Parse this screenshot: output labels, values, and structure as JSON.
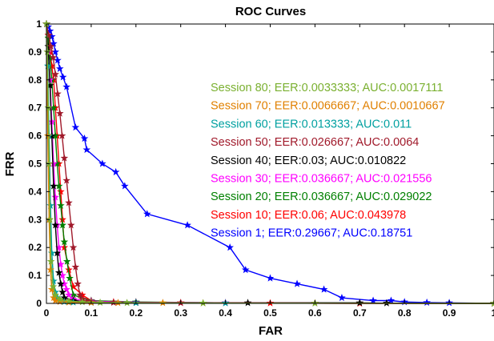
{
  "chart_data": {
    "type": "line",
    "title": "ROC Curves",
    "xlabel": "FAR",
    "ylabel": "FRR",
    "xlim": [
      0,
      1
    ],
    "ylim": [
      0,
      1
    ],
    "xticks": [
      0,
      0.1,
      0.2,
      0.3,
      0.4,
      0.5,
      0.6,
      0.7,
      0.8,
      0.9,
      1
    ],
    "yticks": [
      0,
      0.1,
      0.2,
      0.3,
      0.4,
      0.5,
      0.6,
      0.7,
      0.8,
      0.9,
      1
    ],
    "xtick_labels": [
      "0",
      "0.1",
      "0.2",
      "0.3",
      "0.4",
      "0.5",
      "0.6",
      "0.7",
      "0.8",
      "0.9",
      "1"
    ],
    "ytick_labels": [
      "0",
      "0.1",
      "0.2",
      "0.3",
      "0.4",
      "0.5",
      "0.6",
      "0.7",
      "0.8",
      "0.9",
      "1"
    ],
    "grid": false,
    "legend_position": "right",
    "marker": "star",
    "series": [
      {
        "name": "Session 1",
        "color": "#0000ff",
        "legend": "Session 1;  EER:0.29667;  AUC:0.18751",
        "x": [
          0,
          0.004,
          0.008,
          0.012,
          0.016,
          0.02,
          0.025,
          0.03,
          0.037,
          0.045,
          0.065,
          0.085,
          0.09,
          0.125,
          0.155,
          0.175,
          0.225,
          0.315,
          0.41,
          0.445,
          0.5,
          0.56,
          0.62,
          0.66,
          0.73,
          0.77,
          0.8,
          0.85,
          0.9,
          1
        ],
        "y": [
          1,
          0.99,
          0.975,
          0.955,
          0.93,
          0.9,
          0.87,
          0.84,
          0.81,
          0.775,
          0.63,
          0.59,
          0.55,
          0.5,
          0.47,
          0.42,
          0.32,
          0.28,
          0.2,
          0.12,
          0.09,
          0.07,
          0.05,
          0.02,
          0.01,
          0.01,
          0.005,
          0.003,
          0.002,
          0
        ]
      },
      {
        "name": "Session 10",
        "color": "#ff0000",
        "legend": "Session 10;  EER:0.06;  AUC:0.043978",
        "x": [
          0,
          0.004,
          0.008,
          0.012,
          0.016,
          0.02,
          0.024,
          0.028,
          0.032,
          0.036,
          0.04,
          0.05,
          0.06,
          0.08,
          0.1,
          0.15,
          0.2,
          0.3,
          0.5,
          0.7,
          1
        ],
        "y": [
          1,
          0.96,
          0.9,
          0.85,
          0.8,
          0.7,
          0.6,
          0.5,
          0.4,
          0.3,
          0.2,
          0.12,
          0.06,
          0.03,
          0.01,
          0.005,
          0.003,
          0.002,
          0.001,
          0,
          0
        ]
      },
      {
        "name": "Session 20",
        "color": "#008000",
        "legend": "Session 20;  EER:0.036667;  AUC:0.029022",
        "x": [
          0,
          0.004,
          0.008,
          0.012,
          0.016,
          0.02,
          0.024,
          0.028,
          0.032,
          0.036,
          0.04,
          0.046,
          0.052,
          0.06,
          0.1,
          0.2,
          0.4,
          1
        ],
        "y": [
          1,
          0.95,
          0.88,
          0.8,
          0.7,
          0.6,
          0.5,
          0.42,
          0.35,
          0.28,
          0.22,
          0.15,
          0.09,
          0.03,
          0.01,
          0.005,
          0.002,
          0
        ]
      },
      {
        "name": "Session 30",
        "color": "#ff00ff",
        "legend": "Session 30;  EER:0.036667;  AUC:0.021556",
        "x": [
          0,
          0.004,
          0.008,
          0.012,
          0.016,
          0.02,
          0.024,
          0.028,
          0.032,
          0.036,
          0.04,
          0.045,
          0.05,
          0.06,
          0.1,
          0.2,
          0.4,
          1
        ],
        "y": [
          1,
          0.9,
          0.8,
          0.65,
          0.5,
          0.38,
          0.28,
          0.2,
          0.14,
          0.1,
          0.07,
          0.05,
          0.03,
          0.015,
          0.008,
          0.004,
          0.002,
          0
        ]
      },
      {
        "name": "Session 40",
        "color": "#000000",
        "legend": "Session 40;  EER:0.03;  AUC:0.010822",
        "x": [
          0,
          0.004,
          0.008,
          0.012,
          0.016,
          0.02,
          0.024,
          0.028,
          0.032,
          0.036,
          0.04,
          0.06,
          0.1,
          0.2,
          0.45,
          0.7,
          0.76,
          1
        ],
        "y": [
          1,
          0.92,
          0.78,
          0.6,
          0.42,
          0.28,
          0.18,
          0.11,
          0.07,
          0.04,
          0.02,
          0.01,
          0.005,
          0.003,
          0.002,
          0.002,
          0.001,
          0
        ]
      },
      {
        "name": "Session 50",
        "color": "#a0192a",
        "legend": "Session 50;  EER:0.026667;  AUC:0.0064",
        "x": [
          0,
          0.005,
          0.01,
          0.015,
          0.02,
          0.025,
          0.03,
          0.035,
          0.04,
          0.045,
          0.05,
          0.055,
          0.06,
          0.065,
          0.07,
          0.075,
          0.08,
          0.09,
          0.1,
          0.15,
          0.3,
          0.6,
          1
        ],
        "y": [
          1,
          0.96,
          0.92,
          0.88,
          0.82,
          0.75,
          0.68,
          0.6,
          0.52,
          0.44,
          0.36,
          0.28,
          0.2,
          0.13,
          0.07,
          0.03,
          0.015,
          0.008,
          0.005,
          0.003,
          0.002,
          0.001,
          0
        ]
      },
      {
        "name": "Session 60",
        "color": "#00a0a0",
        "legend": "Session 60;  EER:0.013333;  AUC:0.011",
        "x": [
          0,
          0.003,
          0.006,
          0.009,
          0.012,
          0.016,
          0.02,
          0.025,
          0.03,
          0.04,
          0.06,
          0.1,
          0.2,
          0.4,
          1
        ],
        "y": [
          1,
          0.85,
          0.6,
          0.35,
          0.18,
          0.08,
          0.04,
          0.02,
          0.01,
          0.006,
          0.004,
          0.003,
          0.002,
          0.001,
          0
        ]
      },
      {
        "name": "Session 70",
        "color": "#e08000",
        "legend": "Session 70;  EER:0.0066667;  AUC:0.0010667",
        "x": [
          0,
          0.003,
          0.006,
          0.009,
          0.012,
          0.016,
          0.02,
          0.03,
          0.05,
          0.1,
          0.16,
          0.26,
          0.35,
          1
        ],
        "y": [
          1,
          0.6,
          0.3,
          0.12,
          0.05,
          0.02,
          0.01,
          0.006,
          0.004,
          0.003,
          0.002,
          0.002,
          0.001,
          0
        ]
      },
      {
        "name": "Session 80",
        "color": "#7ab030",
        "legend": "Session 80;  EER:0.0033333;  AUC:0.0017111",
        "x": [
          0,
          0.002,
          0.004,
          0.006,
          0.008,
          0.01,
          0.015,
          0.02,
          0.03,
          0.05,
          0.08,
          0.12,
          0.18,
          0.35,
          0.6,
          1
        ],
        "y": [
          1,
          0.9,
          0.7,
          0.5,
          0.3,
          0.15,
          0.06,
          0.03,
          0.015,
          0.008,
          0.005,
          0.003,
          0.002,
          0.001,
          0.0005,
          0
        ]
      }
    ],
    "legend_order": [
      8,
      7,
      6,
      5,
      4,
      3,
      2,
      1,
      0
    ]
  }
}
